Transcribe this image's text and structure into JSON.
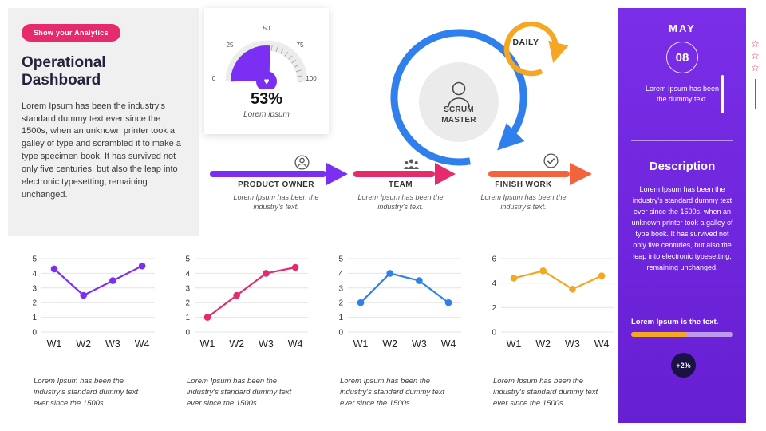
{
  "colors": {
    "purple": "#7B2FF2",
    "panel_purple": "#7A2EE8",
    "pink": "#E62A6E",
    "blue": "#2F80ED",
    "orange": "#F5A623",
    "orange_red": "#F2653C",
    "badge_navy": "#1A1244"
  },
  "icons": {
    "star": "☆",
    "heart": "♥"
  },
  "left_panel": {
    "button_label": "Show your Analytics",
    "title": "Operational Dashboard",
    "body": "Lorem Ipsum has been the industry's standard dummy text ever since the 1500s, when an unknown printer took a galley of type and scrambled it to make a type specimen book. It has survived not only five centuries, but also the leap into electronic typesetting, remaining unchanged."
  },
  "gauge": {
    "value": 53,
    "value_label": "53%",
    "caption": "Lorem ipsum",
    "ticks": [
      "0",
      "25",
      "50",
      "75",
      "100"
    ]
  },
  "scrum": {
    "center_label": "SCRUM MASTER",
    "daily_label": "DAILY",
    "steps": [
      {
        "label": "PRODUCT OWNER",
        "caption": "Lorem Ipsum has been the industry's text."
      },
      {
        "label": "TEAM",
        "caption": "Lorem Ipsum has been the industry's text."
      },
      {
        "label": "FINISH WORK",
        "caption": "Lorem Ipsum has been the industry's text."
      }
    ]
  },
  "right_panel": {
    "month": "MAY",
    "day": "08",
    "date_caption": "Lorem Ipsum has been the dummy text.",
    "section_title": "Description",
    "description": "Lorem Ipsum has been the industry's standard dummy text ever since the 1500s, when an unknown printer took a galley of type book. It has survived not only five centuries, but also the leap into electronic typesetting, remaining unchanged.",
    "progress_label": "Lorem Ipsum is the text.",
    "progress_percent": 55,
    "badge_label": "+2%"
  },
  "chart_data": [
    {
      "type": "line",
      "categories": [
        "W1",
        "W2",
        "W3",
        "W4"
      ],
      "values": [
        4.3,
        2.5,
        3.5,
        4.5
      ],
      "ylim": [
        0,
        5
      ],
      "yticks": [
        0,
        1,
        2,
        3,
        4,
        5
      ],
      "color": "#7B2FF2",
      "grid": true,
      "caption": "Lorem Ipsum has been the industry's standard dummy text ever since the 1500s."
    },
    {
      "type": "line",
      "categories": [
        "W1",
        "W2",
        "W3",
        "W4"
      ],
      "values": [
        1.0,
        2.5,
        4.0,
        4.4
      ],
      "ylim": [
        0,
        5
      ],
      "yticks": [
        0,
        1,
        2,
        3,
        4,
        5
      ],
      "color": "#E62A6E",
      "grid": true,
      "caption": "Lorem Ipsum has been the industry's standard dummy text ever since the 1500s."
    },
    {
      "type": "line",
      "categories": [
        "W1",
        "W2",
        "W3",
        "W4"
      ],
      "values": [
        2.0,
        4.0,
        3.5,
        2.0
      ],
      "ylim": [
        0,
        5
      ],
      "yticks": [
        0,
        1,
        2,
        3,
        4,
        5
      ],
      "color": "#2F80ED",
      "grid": true,
      "caption": "Lorem Ipsum has been the industry's standard dummy text ever since the 1500s."
    },
    {
      "type": "line",
      "categories": [
        "W1",
        "W2",
        "W3",
        "W4"
      ],
      "values": [
        4.4,
        5.0,
        3.5,
        4.6
      ],
      "ylim": [
        0,
        6
      ],
      "yticks": [
        0,
        2,
        4,
        6
      ],
      "color": "#F5A623",
      "grid": true,
      "caption": "Lorem Ipsum has been the industry's standard dummy text ever since the 1500s."
    }
  ]
}
